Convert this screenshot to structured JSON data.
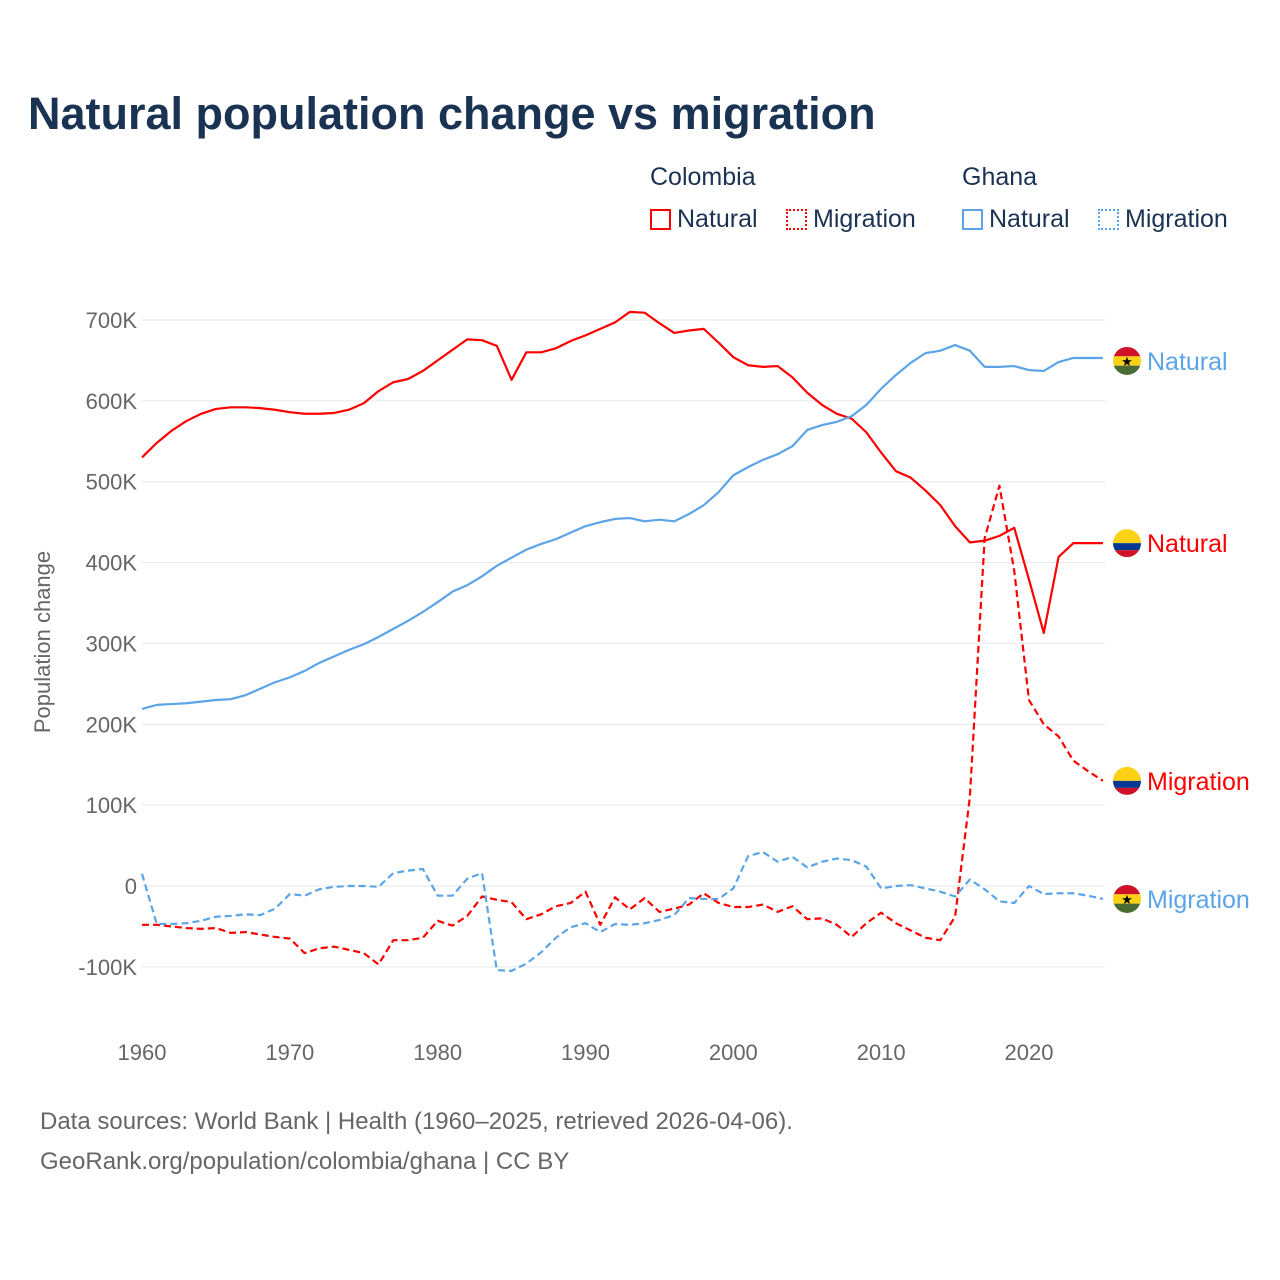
{
  "title": "Natural population change vs migration",
  "legend": {
    "groups": [
      {
        "name": "Colombia",
        "color": "#ff0000",
        "items": [
          "Natural",
          "Migration"
        ]
      },
      {
        "name": "Ghana",
        "color": "#5ba4e8",
        "items": [
          "Natural",
          "Migration"
        ]
      }
    ]
  },
  "footer": {
    "line1": "Data sources: World Bank | Health (1960–2025, retrieved 2026-04-06).",
    "line2": "GeoRank.org/population/colombia/ghana | CC BY"
  },
  "chart_data": {
    "type": "line",
    "title": "Natural population change vs migration",
    "xlabel": "",
    "ylabel": "Population change",
    "xlim": [
      1960,
      2025
    ],
    "ylim": [
      -150000,
      750000
    ],
    "x_ticks": [
      1960,
      1970,
      1980,
      1990,
      2000,
      2010,
      2020
    ],
    "y_ticks": [
      {
        "v": -100000,
        "label": "-100K"
      },
      {
        "v": 0,
        "label": "0"
      },
      {
        "v": 100000,
        "label": "100K"
      },
      {
        "v": 200000,
        "label": "200K"
      },
      {
        "v": 300000,
        "label": "300K"
      },
      {
        "v": 400000,
        "label": "400K"
      },
      {
        "v": 500000,
        "label": "500K"
      },
      {
        "v": 600000,
        "label": "600K"
      },
      {
        "v": 700000,
        "label": "700K"
      }
    ],
    "grid": true,
    "legend_position": "top-right",
    "series": [
      {
        "name": "Colombia Natural",
        "label": "Natural",
        "country": "Colombia",
        "color": "#ff0000",
        "dash": "solid",
        "start": 1960,
        "extend_to": 2025,
        "values": [
          530,
          548,
          563,
          575,
          584,
          590,
          592,
          592,
          591,
          589,
          586,
          584,
          584,
          585,
          589,
          597,
          612,
          623,
          627,
          637,
          650,
          663,
          676,
          675,
          668,
          626,
          660,
          660,
          665,
          674,
          681,
          689,
          697,
          710,
          709,
          696,
          684,
          687,
          689,
          672,
          654,
          644,
          642,
          643,
          629,
          610,
          595,
          584,
          578,
          561,
          536,
          513,
          505,
          489,
          471,
          445,
          425,
          427,
          433,
          443,
          379,
          313,
          407,
          424
        ]
      },
      {
        "name": "Colombia Migration",
        "label": "Migration",
        "country": "Colombia",
        "color": "#ff0000",
        "dash": "dashed",
        "start": 1960,
        "extend_to": 2025,
        "values": [
          -48,
          -48,
          -50,
          -52,
          -53,
          -52,
          -58,
          -57,
          -60,
          -63,
          -65,
          -83,
          -77,
          -75,
          -79,
          -83,
          -97,
          -67,
          -67,
          -64,
          -43,
          -49,
          -37,
          -13,
          -17,
          -20,
          -41,
          -35,
          -25,
          -21,
          -7,
          -48,
          -14,
          -29,
          -15,
          -32,
          -28,
          -23,
          -9,
          -21,
          -26,
          -26,
          -23,
          -32,
          -25,
          -41,
          -40,
          -48,
          -63,
          -46,
          -33,
          -46,
          -55,
          -64,
          -67,
          -38,
          110,
          430,
          495,
          390,
          230,
          200,
          185,
          155,
          142,
          130
        ]
      },
      {
        "name": "Ghana Natural",
        "label": "Natural",
        "country": "Ghana",
        "color": "#5ba4e8",
        "dash": "solid",
        "start": 1960,
        "extend_to": 2025,
        "values": [
          219,
          224,
          225,
          226,
          228,
          230,
          231,
          236,
          244,
          252,
          258,
          266,
          276,
          284,
          292,
          299,
          308,
          318,
          328,
          339,
          351,
          364,
          372,
          383,
          396,
          406,
          416,
          423,
          429,
          437,
          445,
          450,
          454,
          455,
          451,
          453,
          451,
          460,
          471,
          487,
          508,
          518,
          527,
          534,
          544,
          564,
          570,
          574,
          581,
          595,
          615,
          632,
          647,
          659,
          662,
          669,
          662,
          642,
          642,
          643,
          638,
          637,
          648,
          653
        ]
      },
      {
        "name": "Ghana Migration",
        "label": "Migration",
        "country": "Ghana",
        "color": "#5ba4e8",
        "dash": "dashed",
        "start": 1960,
        "extend_to": 2025,
        "values": [
          15,
          -47,
          -47,
          -46,
          -43,
          -38,
          -37,
          -35,
          -36,
          -28,
          -10,
          -12,
          -4,
          -1,
          0,
          0,
          -1,
          16,
          19,
          21,
          -12,
          -12,
          9,
          16,
          -104,
          -105,
          -96,
          -82,
          -64,
          -51,
          -46,
          -57,
          -47,
          -48,
          -46,
          -42,
          -36,
          -15,
          -16,
          -16,
          -3,
          37,
          42,
          30,
          36,
          23,
          30,
          34,
          32,
          24,
          -3,
          0,
          1,
          -3,
          -7,
          -13,
          8,
          -4,
          -19,
          -21,
          0,
          -10,
          -9,
          -9,
          -12,
          -16
        ]
      }
    ],
    "value_unit": "thousands"
  }
}
